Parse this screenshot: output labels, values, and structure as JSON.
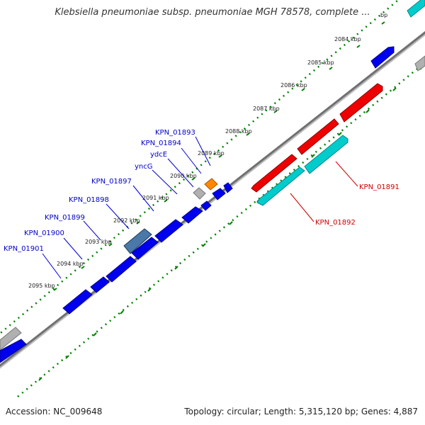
{
  "title": "Klebsiella pneumoniae subsp. pneumoniae MGH 78578, complete ...",
  "footer": {
    "accession": "Accession: NC_009648",
    "summary": "Topology: circular; Length: 5,315,120 bp; Genes: 4,887"
  },
  "ticks": [
    {
      "label": "bp"
    },
    {
      "label": "2084 kbp"
    },
    {
      "label": "2085 kbp"
    },
    {
      "label": "2086 kbp"
    },
    {
      "label": "2087 kbp"
    },
    {
      "label": "2088 kbp"
    },
    {
      "label": "2089 kbp"
    },
    {
      "label": "2090 kbp"
    },
    {
      "label": "2091 kbp"
    },
    {
      "label": "2092 kbp"
    },
    {
      "label": "2093 kbp"
    },
    {
      "label": "2094 kbp"
    },
    {
      "label": "2095 kbp"
    }
  ],
  "genes_left": [
    {
      "name": "KPN_01893",
      "color": "#0000ff"
    },
    {
      "name": "KPN_01894",
      "color": "#0000ff"
    },
    {
      "name": "ydcE",
      "color": "#0000ff"
    },
    {
      "name": "yncG",
      "color": "#0000ff"
    },
    {
      "name": "KPN_01897",
      "color": "#0000ff"
    },
    {
      "name": "KPN_01898",
      "color": "#0000ff"
    },
    {
      "name": "KPN_01899",
      "color": "#0000ff"
    },
    {
      "name": "KPN_01900",
      "color": "#0000ff"
    },
    {
      "name": "KPN_01901",
      "color": "#0000ff"
    }
  ],
  "genes_right": [
    {
      "name": "KPN_01891",
      "color": "#cc0000"
    },
    {
      "name": "KPN_01892",
      "color": "#cc0000"
    }
  ],
  "colors": {
    "forward_gene": "#0000ee",
    "reverse_gene_red": "#ee0000",
    "reverse_gene_teal": "#00cccc",
    "orange_gene": "#ff8800",
    "grey_gene": "#b0b0b0",
    "steel_gene": "#4a78a8",
    "backbone": "#808080",
    "tick_green": "#008000"
  }
}
